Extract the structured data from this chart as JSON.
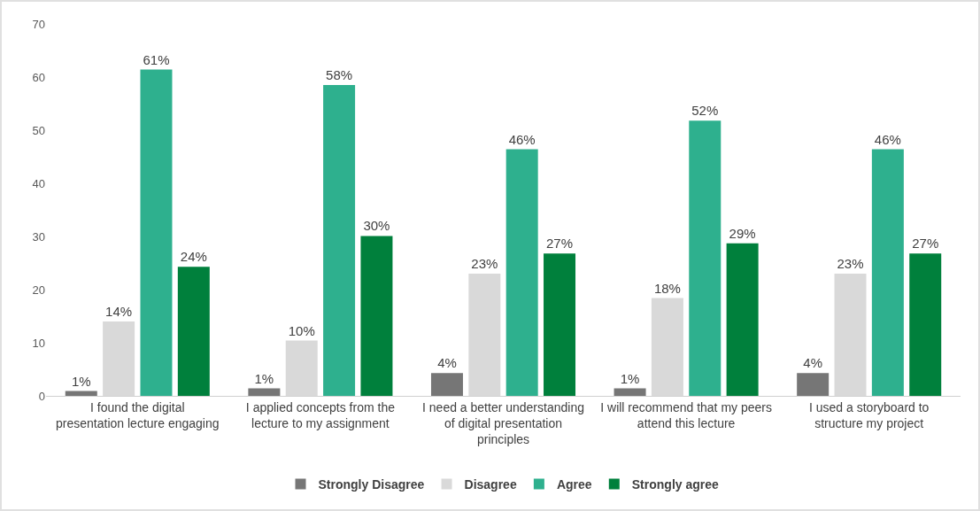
{
  "chart_data": {
    "type": "bar",
    "categories": [
      "I found the digital presentation lecture engaging",
      "I applied concepts from the lecture to my assignment",
      "I need a better understanding of digital presentation principles",
      "I will recommend that my peers attend this lecture",
      "I used a storyboard to structure my project"
    ],
    "series": [
      {
        "name": "Strongly Disagree",
        "color": "#767676",
        "values": [
          0.9,
          1.4,
          4.3,
          1.4,
          4.3
        ],
        "value_labels": [
          "1%",
          "1%",
          "4%",
          "1%",
          "4%"
        ]
      },
      {
        "name": "Disagree",
        "color": "#d9d9d9",
        "values": [
          14,
          10.4,
          23,
          18.4,
          23
        ],
        "value_labels": [
          "14%",
          "10%",
          "23%",
          "18%",
          "23%"
        ]
      },
      {
        "name": "Agree",
        "color": "#2eb08e",
        "values": [
          61.4,
          58.5,
          46.4,
          51.8,
          46.4
        ],
        "value_labels": [
          "61%",
          "58%",
          "46%",
          "52%",
          "46%"
        ]
      },
      {
        "name": "Strongly agree",
        "color": "#00803c",
        "values": [
          24.3,
          30.1,
          26.8,
          28.7,
          26.8
        ],
        "value_labels": [
          "24%",
          "30%",
          "27%",
          "29%",
          "27%"
        ]
      }
    ],
    "ylim": [
      0,
      70
    ],
    "yticks": [
      0,
      10,
      20,
      30,
      40,
      50,
      60,
      70
    ],
    "grid": false,
    "legend": "bottom"
  }
}
